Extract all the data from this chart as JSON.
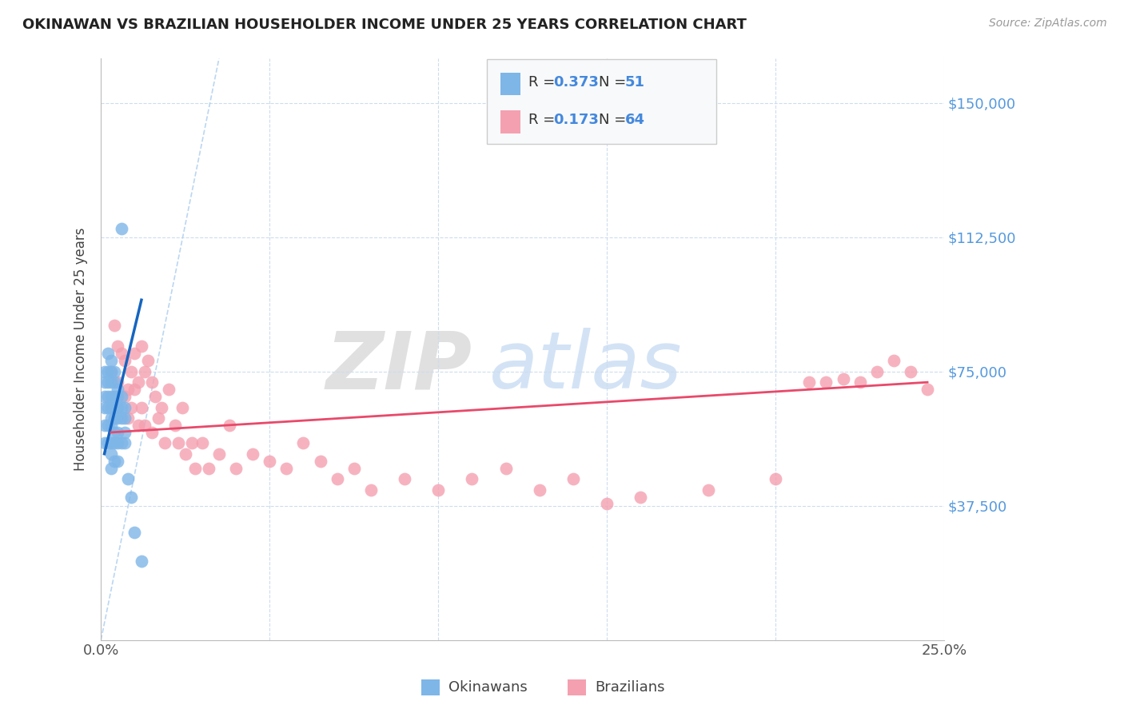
{
  "title": "OKINAWAN VS BRAZILIAN HOUSEHOLDER INCOME UNDER 25 YEARS CORRELATION CHART",
  "source": "Source: ZipAtlas.com",
  "ylabel": "Householder Income Under 25 years",
  "xmin": 0.0,
  "xmax": 0.25,
  "ymin": 0,
  "ymax": 162500,
  "yticks": [
    0,
    37500,
    75000,
    112500,
    150000
  ],
  "ytick_labels": [
    "",
    "$37,500",
    "$75,000",
    "$112,500",
    "$150,000"
  ],
  "legend_r1": "0.373",
  "legend_n1": "51",
  "legend_r2": "0.173",
  "legend_n2": "64",
  "okinawan_color": "#7EB6E8",
  "brazilian_color": "#F4A0B0",
  "trend_blue": "#1565C0",
  "trend_pink": "#E8496A",
  "legend_label1": "Okinawans",
  "legend_label2": "Brazilians",
  "okinawan_x": [
    0.001,
    0.001,
    0.001,
    0.001,
    0.001,
    0.001,
    0.002,
    0.002,
    0.002,
    0.002,
    0.002,
    0.002,
    0.002,
    0.003,
    0.003,
    0.003,
    0.003,
    0.003,
    0.003,
    0.003,
    0.003,
    0.003,
    0.003,
    0.004,
    0.004,
    0.004,
    0.004,
    0.004,
    0.004,
    0.004,
    0.004,
    0.005,
    0.005,
    0.005,
    0.005,
    0.005,
    0.005,
    0.005,
    0.006,
    0.006,
    0.006,
    0.006,
    0.006,
    0.007,
    0.007,
    0.007,
    0.007,
    0.008,
    0.009,
    0.01,
    0.012
  ],
  "okinawan_y": [
    75000,
    72000,
    68000,
    65000,
    60000,
    55000,
    80000,
    75000,
    72000,
    68000,
    65000,
    60000,
    55000,
    78000,
    75000,
    72000,
    68000,
    65000,
    62000,
    60000,
    55000,
    52000,
    48000,
    75000,
    72000,
    68000,
    65000,
    62000,
    58000,
    55000,
    50000,
    70000,
    68000,
    65000,
    62000,
    58000,
    55000,
    50000,
    68000,
    65000,
    62000,
    115000,
    55000,
    65000,
    62000,
    58000,
    55000,
    45000,
    40000,
    30000,
    22000
  ],
  "okinawan_trend_x": [
    0.001,
    0.012
  ],
  "okinawan_trend_y": [
    52000,
    95000
  ],
  "brazilian_x": [
    0.003,
    0.004,
    0.005,
    0.005,
    0.006,
    0.007,
    0.007,
    0.008,
    0.008,
    0.009,
    0.009,
    0.01,
    0.01,
    0.011,
    0.011,
    0.012,
    0.012,
    0.013,
    0.013,
    0.014,
    0.015,
    0.015,
    0.016,
    0.017,
    0.018,
    0.019,
    0.02,
    0.022,
    0.023,
    0.024,
    0.025,
    0.027,
    0.028,
    0.03,
    0.032,
    0.035,
    0.038,
    0.04,
    0.045,
    0.05,
    0.055,
    0.06,
    0.065,
    0.07,
    0.075,
    0.08,
    0.09,
    0.1,
    0.11,
    0.12,
    0.13,
    0.14,
    0.15,
    0.16,
    0.18,
    0.2,
    0.21,
    0.215,
    0.22,
    0.225,
    0.23,
    0.235,
    0.24,
    0.245
  ],
  "brazilian_y": [
    75000,
    88000,
    82000,
    72000,
    80000,
    78000,
    68000,
    70000,
    62000,
    75000,
    65000,
    80000,
    70000,
    72000,
    60000,
    82000,
    65000,
    75000,
    60000,
    78000,
    72000,
    58000,
    68000,
    62000,
    65000,
    55000,
    70000,
    60000,
    55000,
    65000,
    52000,
    55000,
    48000,
    55000,
    48000,
    52000,
    60000,
    48000,
    52000,
    50000,
    48000,
    55000,
    50000,
    45000,
    48000,
    42000,
    45000,
    42000,
    45000,
    48000,
    42000,
    45000,
    38000,
    40000,
    42000,
    45000,
    72000,
    72000,
    73000,
    72000,
    75000,
    78000,
    75000,
    70000
  ],
  "brazilian_trend_x": [
    0.003,
    0.245
  ],
  "brazilian_trend_y": [
    58000,
    72000
  ],
  "ref_line_x": [
    0.0,
    0.035
  ],
  "ref_line_y": [
    0,
    162500
  ],
  "watermark_zip": "ZIP",
  "watermark_atlas": "atlas",
  "watermark_zip_color": "#C8C8C8",
  "watermark_atlas_color": "#B0CCEE"
}
